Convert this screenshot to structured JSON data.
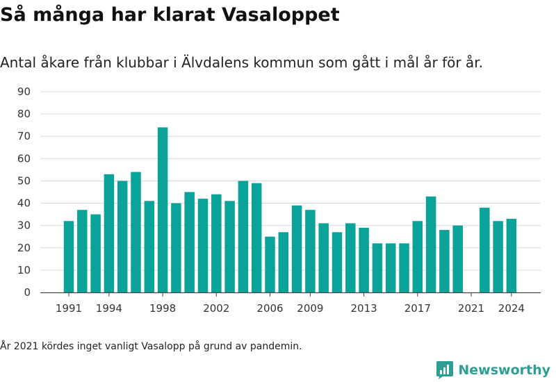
{
  "title": "Så många har klarat Vasaloppet",
  "subtitle": "Antal åkare från klubbar i Älvdalens kommun som gått i mål år för år.",
  "note": "År 2021 kördes inget vanligt Vasalopp på grund av pandemin.",
  "brand": {
    "name": "Newsworthy",
    "color": "#2e9e95"
  },
  "chart_data": {
    "type": "bar",
    "title": "Så många har klarat Vasaloppet",
    "subtitle": "Antal åkare från klubbar i Älvdalens kommun som gått i mål år för år.",
    "xlabel": "",
    "ylabel": "",
    "bar_color": "#0aa39a",
    "grid": true,
    "ylim": [
      0,
      90
    ],
    "yticks": [
      0,
      10,
      20,
      30,
      40,
      50,
      60,
      70,
      80,
      90
    ],
    "xticks": [
      1991,
      1994,
      1998,
      2002,
      2006,
      2009,
      2013,
      2017,
      2021,
      2024
    ],
    "categories": [
      1991,
      1992,
      1993,
      1994,
      1995,
      1996,
      1997,
      1998,
      1999,
      2000,
      2001,
      2002,
      2003,
      2004,
      2005,
      2006,
      2007,
      2008,
      2009,
      2010,
      2011,
      2012,
      2013,
      2014,
      2015,
      2016,
      2017,
      2018,
      2019,
      2020,
      2021,
      2022,
      2023,
      2024
    ],
    "values": [
      32,
      37,
      35,
      53,
      50,
      54,
      41,
      74,
      40,
      45,
      42,
      44,
      41,
      50,
      49,
      25,
      27,
      39,
      37,
      31,
      27,
      31,
      29,
      22,
      22,
      22,
      32,
      43,
      28,
      30,
      0,
      38,
      32,
      33
    ]
  }
}
